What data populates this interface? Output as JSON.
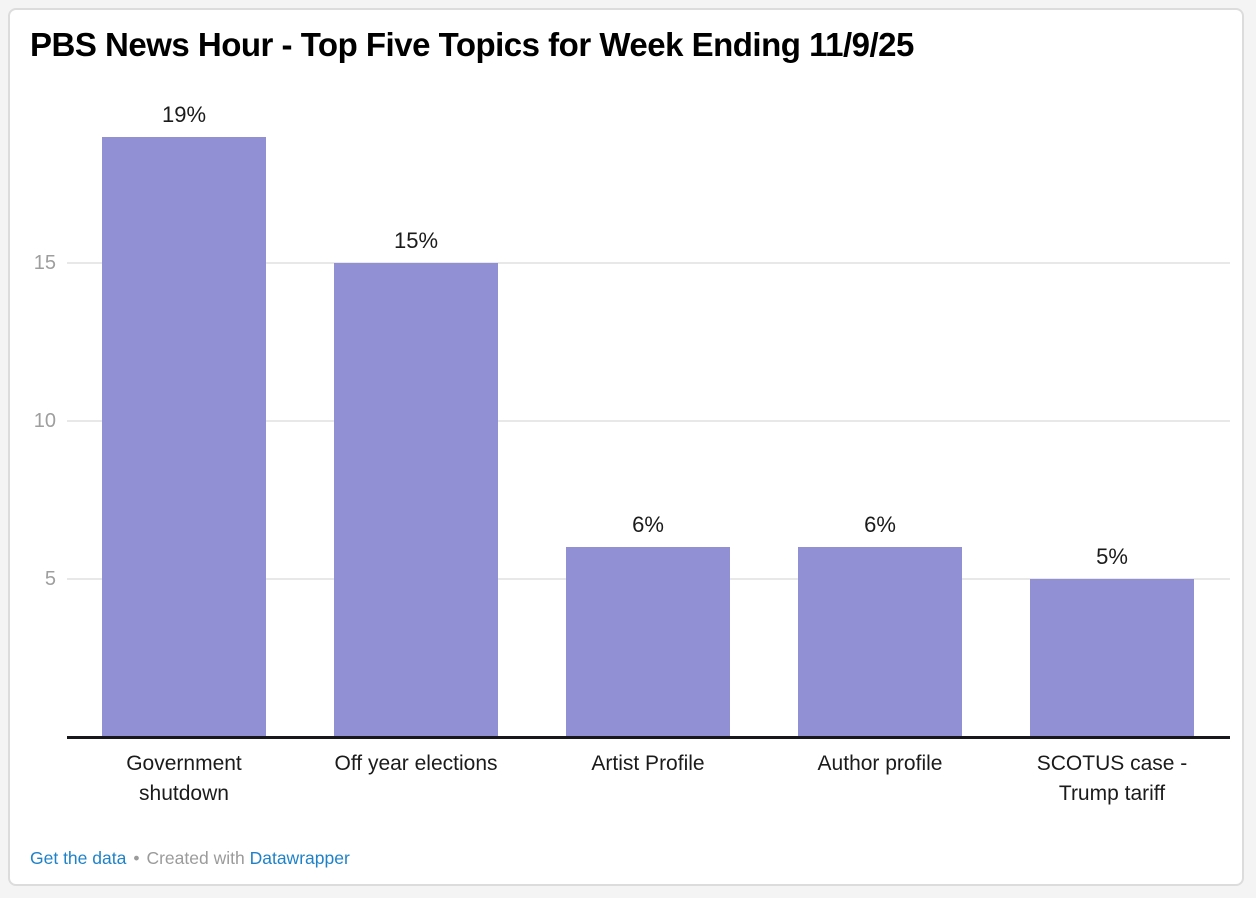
{
  "chart_data": {
    "type": "bar",
    "title": "PBS News Hour - Top Five Topics for Week Ending 11/9/25",
    "categories": [
      "Government shutdown",
      "Off year elections",
      "Artist Profile",
      "Author profile",
      "SCOTUS case - Trump tariff"
    ],
    "values": [
      19,
      15,
      6,
      6,
      5
    ],
    "value_labels": [
      "19%",
      "15%",
      "6%",
      "6%",
      "5%"
    ],
    "y_ticks": [
      5,
      10,
      15
    ],
    "ylim": [
      0,
      20
    ],
    "grid": true,
    "legend_position": "none",
    "xlabel": "",
    "ylabel": "",
    "bar_color": "#9190d5"
  },
  "colors": {
    "bar": "#9190d5",
    "gridline": "#e8e8e8",
    "axis_line": "#17171c",
    "tick_label": "#9e9e9e",
    "label_text": "#1b1b1b",
    "link": "#1f82c9",
    "footer_gray": "#9b9b9b"
  },
  "footer": {
    "get_data_label": "Get the data",
    "separator": "•",
    "created_with": "Created with",
    "datawrapper_label": "Datawrapper"
  }
}
